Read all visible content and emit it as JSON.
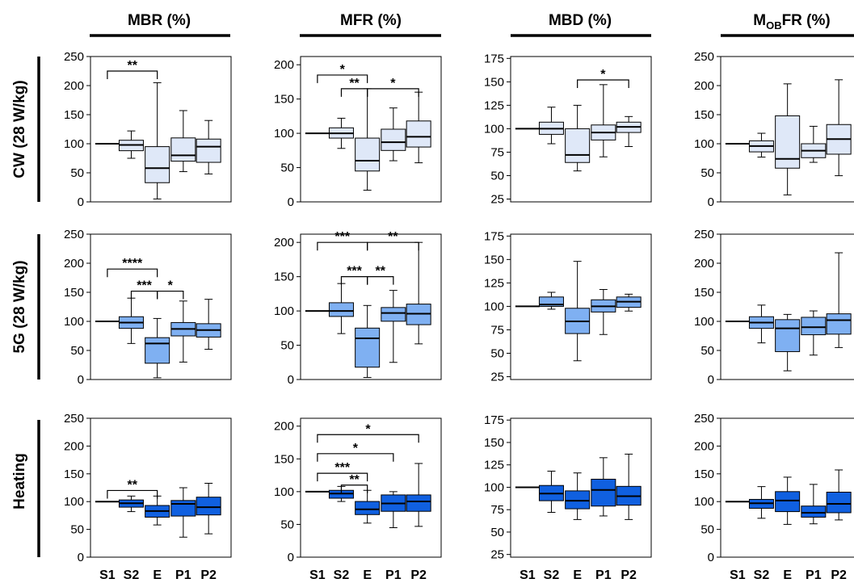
{
  "figure": {
    "colors": {
      "CW": "#dfe8f8",
      "5G": "#7fb0f2",
      "Heating": "#1060e0",
      "ink": "#000000"
    },
    "columns": [
      {
        "id": "MBR",
        "title": "MBR (%)"
      },
      {
        "id": "MFR",
        "title": "MFR (%)"
      },
      {
        "id": "MBD",
        "title": "MBD (%)"
      },
      {
        "id": "MOBFR",
        "title_main": "M",
        "title_sub": "OB",
        "title_rest": "FR (%)"
      }
    ],
    "rows": [
      {
        "id": "CW",
        "title": "CW (28 W/kg)"
      },
      {
        "id": "5G",
        "title": "5G (28 W/kg)"
      },
      {
        "id": "Heating",
        "title": "Heating"
      }
    ]
  },
  "chart_data": [
    {
      "type": "box",
      "column": "MBR",
      "row": "CW",
      "categories": [
        "S1",
        "S2",
        "E",
        "P1",
        "P2"
      ],
      "ylim": [
        0,
        250
      ],
      "yticks": [
        "0",
        "50",
        "100",
        "150",
        "200",
        "250"
      ],
      "boxes": [
        {
          "min": 100,
          "q1": 100,
          "median": 100,
          "q3": 100,
          "max": 100
        },
        {
          "min": 75,
          "q1": 88,
          "median": 98,
          "q3": 106,
          "max": 122
        },
        {
          "min": 5,
          "q1": 33,
          "median": 58,
          "q3": 95,
          "max": 205
        },
        {
          "min": 52,
          "q1": 70,
          "median": 80,
          "q3": 110,
          "max": 157
        },
        {
          "min": 48,
          "q1": 68,
          "median": 95,
          "q3": 108,
          "max": 140
        }
      ],
      "significance": [
        {
          "from": "S1",
          "to": "E",
          "label": "**",
          "y": 225
        }
      ]
    },
    {
      "type": "box",
      "column": "MFR",
      "row": "CW",
      "categories": [
        "S1",
        "S2",
        "E",
        "P1",
        "P2"
      ],
      "ylim": [
        0,
        212
      ],
      "yticks": [
        "0",
        "50",
        "100",
        "150",
        "200"
      ],
      "boxes": [
        {
          "min": 100,
          "q1": 100,
          "median": 100,
          "q3": 100,
          "max": 100
        },
        {
          "min": 78,
          "q1": 93,
          "median": 100,
          "q3": 108,
          "max": 122
        },
        {
          "min": 17,
          "q1": 45,
          "median": 60,
          "q3": 93,
          "max": 165
        },
        {
          "min": 60,
          "q1": 75,
          "median": 87,
          "q3": 106,
          "max": 137
        },
        {
          "min": 57,
          "q1": 80,
          "median": 95,
          "q3": 118,
          "max": 160
        }
      ],
      "significance": [
        {
          "from": "S1",
          "to": "E",
          "label": "*",
          "y": 185
        },
        {
          "from": "S2",
          "to": "E",
          "label": "**",
          "y": 165
        },
        {
          "from": "E",
          "to": "P2",
          "label": "*",
          "y": 165
        }
      ]
    },
    {
      "type": "box",
      "column": "MBD",
      "row": "CW",
      "categories": [
        "S1",
        "S2",
        "E",
        "P1",
        "P2"
      ],
      "ylim": [
        22,
        177
      ],
      "yticks": [
        "25",
        "50",
        "75",
        "100",
        "125",
        "150",
        "175"
      ],
      "boxes": [
        {
          "min": 100,
          "q1": 100,
          "median": 100,
          "q3": 100,
          "max": 100
        },
        {
          "min": 84,
          "q1": 94,
          "median": 100,
          "q3": 107,
          "max": 123
        },
        {
          "min": 55,
          "q1": 64,
          "median": 72,
          "q3": 100,
          "max": 125
        },
        {
          "min": 70,
          "q1": 88,
          "median": 96,
          "q3": 104,
          "max": 147
        },
        {
          "min": 81,
          "q1": 96,
          "median": 102,
          "q3": 107,
          "max": 113
        }
      ],
      "significance": [
        {
          "from": "E",
          "to": "P2",
          "label": "*",
          "y": 152
        }
      ]
    },
    {
      "type": "box",
      "column": "MOBFR",
      "row": "CW",
      "categories": [
        "S1",
        "S2",
        "E",
        "P1",
        "P2"
      ],
      "ylim": [
        0,
        250
      ],
      "yticks": [
        "0",
        "50",
        "100",
        "150",
        "200",
        "250"
      ],
      "boxes": [
        {
          "min": 100,
          "q1": 100,
          "median": 100,
          "q3": 100,
          "max": 100
        },
        {
          "min": 77,
          "q1": 86,
          "median": 96,
          "q3": 105,
          "max": 118
        },
        {
          "min": 12,
          "q1": 58,
          "median": 74,
          "q3": 148,
          "max": 203
        },
        {
          "min": 68,
          "q1": 76,
          "median": 88,
          "q3": 100,
          "max": 130
        },
        {
          "min": 45,
          "q1": 82,
          "median": 108,
          "q3": 133,
          "max": 210
        }
      ],
      "significance": []
    },
    {
      "type": "box",
      "column": "MBR",
      "row": "5G",
      "categories": [
        "S1",
        "S2",
        "E",
        "P1",
        "P2"
      ],
      "ylim": [
        0,
        250
      ],
      "yticks": [
        "0",
        "50",
        "100",
        "150",
        "200",
        "250"
      ],
      "boxes": [
        {
          "min": 100,
          "q1": 100,
          "median": 100,
          "q3": 100,
          "max": 100
        },
        {
          "min": 62,
          "q1": 88,
          "median": 98,
          "q3": 108,
          "max": 140
        },
        {
          "min": 3,
          "q1": 28,
          "median": 62,
          "q3": 72,
          "max": 105
        },
        {
          "min": 30,
          "q1": 75,
          "median": 87,
          "q3": 98,
          "max": 135
        },
        {
          "min": 52,
          "q1": 73,
          "median": 85,
          "q3": 96,
          "max": 138
        }
      ],
      "significance": [
        {
          "from": "S1",
          "to": "E",
          "label": "****",
          "y": 190
        },
        {
          "from": "S2",
          "to": "E",
          "label": "***",
          "y": 152
        },
        {
          "from": "E",
          "to": "P1",
          "label": "*",
          "y": 152
        }
      ]
    },
    {
      "type": "box",
      "column": "MFR",
      "row": "5G",
      "categories": [
        "S1",
        "S2",
        "E",
        "P1",
        "P2"
      ],
      "ylim": [
        0,
        212
      ],
      "yticks": [
        "0",
        "50",
        "100",
        "150",
        "200"
      ],
      "boxes": [
        {
          "min": 100,
          "q1": 100,
          "median": 100,
          "q3": 100,
          "max": 100
        },
        {
          "min": 67,
          "q1": 92,
          "median": 100,
          "q3": 112,
          "max": 140
        },
        {
          "min": 3,
          "q1": 18,
          "median": 60,
          "q3": 75,
          "max": 108
        },
        {
          "min": 25,
          "q1": 85,
          "median": 97,
          "q3": 105,
          "max": 130
        },
        {
          "min": 52,
          "q1": 80,
          "median": 96,
          "q3": 110,
          "max": 200
        }
      ],
      "significance": [
        {
          "from": "S1",
          "to": "E",
          "label": "***",
          "y": 200
        },
        {
          "from": "E",
          "to": "P2",
          "label": "**",
          "y": 200
        },
        {
          "from": "S2",
          "to": "E",
          "label": "***",
          "y": 150
        },
        {
          "from": "E",
          "to": "P1",
          "label": "**",
          "y": 150
        }
      ]
    },
    {
      "type": "box",
      "column": "MBD",
      "row": "5G",
      "categories": [
        "S1",
        "S2",
        "E",
        "P1",
        "P2"
      ],
      "ylim": [
        22,
        177
      ],
      "yticks": [
        "25",
        "50",
        "75",
        "100",
        "125",
        "150",
        "175"
      ],
      "boxes": [
        {
          "min": 100,
          "q1": 100,
          "median": 100,
          "q3": 100,
          "max": 100
        },
        {
          "min": 97,
          "q1": 100,
          "median": 102,
          "q3": 110,
          "max": 115
        },
        {
          "min": 42,
          "q1": 71,
          "median": 84,
          "q3": 98,
          "max": 148
        },
        {
          "min": 70,
          "q1": 94,
          "median": 100,
          "q3": 107,
          "max": 118
        },
        {
          "min": 95,
          "q1": 99,
          "median": 105,
          "q3": 110,
          "max": 113
        }
      ],
      "significance": []
    },
    {
      "type": "box",
      "column": "MOBFR",
      "row": "5G",
      "categories": [
        "S1",
        "S2",
        "E",
        "P1",
        "P2"
      ],
      "ylim": [
        0,
        250
      ],
      "yticks": [
        "0",
        "50",
        "100",
        "150",
        "200",
        "250"
      ],
      "boxes": [
        {
          "min": 100,
          "q1": 100,
          "median": 100,
          "q3": 100,
          "max": 100
        },
        {
          "min": 63,
          "q1": 88,
          "median": 98,
          "q3": 108,
          "max": 128
        },
        {
          "min": 15,
          "q1": 48,
          "median": 88,
          "q3": 103,
          "max": 112
        },
        {
          "min": 42,
          "q1": 77,
          "median": 90,
          "q3": 107,
          "max": 118
        },
        {
          "min": 55,
          "q1": 78,
          "median": 102,
          "q3": 113,
          "max": 218
        }
      ],
      "significance": []
    },
    {
      "type": "box",
      "column": "MBR",
      "row": "Heating",
      "categories": [
        "S1",
        "S2",
        "E",
        "P1",
        "P2"
      ],
      "ylim": [
        0,
        250
      ],
      "yticks": [
        "0",
        "50",
        "100",
        "150",
        "200",
        "250"
      ],
      "boxes": [
        {
          "min": 100,
          "q1": 100,
          "median": 100,
          "q3": 100,
          "max": 100
        },
        {
          "min": 82,
          "q1": 90,
          "median": 97,
          "q3": 103,
          "max": 110
        },
        {
          "min": 58,
          "q1": 72,
          "median": 83,
          "q3": 93,
          "max": 110
        },
        {
          "min": 36,
          "q1": 74,
          "median": 96,
          "q3": 102,
          "max": 125
        },
        {
          "min": 42,
          "q1": 76,
          "median": 90,
          "q3": 108,
          "max": 133
        }
      ],
      "significance": [
        {
          "from": "S1",
          "to": "E",
          "label": "**",
          "y": 120
        }
      ]
    },
    {
      "type": "box",
      "column": "MFR",
      "row": "Heating",
      "categories": [
        "S1",
        "S2",
        "E",
        "P1",
        "P2"
      ],
      "ylim": [
        0,
        212
      ],
      "yticks": [
        "0",
        "50",
        "100",
        "150",
        "200"
      ],
      "boxes": [
        {
          "min": 100,
          "q1": 100,
          "median": 100,
          "q3": 100,
          "max": 100
        },
        {
          "min": 85,
          "q1": 90,
          "median": 97,
          "q3": 102,
          "max": 108
        },
        {
          "min": 52,
          "q1": 65,
          "median": 73,
          "q3": 85,
          "max": 102
        },
        {
          "min": 45,
          "q1": 70,
          "median": 82,
          "q3": 95,
          "max": 100
        },
        {
          "min": 47,
          "q1": 70,
          "median": 85,
          "q3": 95,
          "max": 143
        }
      ],
      "significance": [
        {
          "from": "S1",
          "to": "P2",
          "label": "*",
          "y": 187
        },
        {
          "from": "S1",
          "to": "P1",
          "label": "*",
          "y": 158
        },
        {
          "from": "S1",
          "to": "E",
          "label": "***",
          "y": 128
        },
        {
          "from": "S2",
          "to": "E",
          "label": "**",
          "y": 110
        }
      ]
    },
    {
      "type": "box",
      "column": "MBD",
      "row": "Heating",
      "categories": [
        "S1",
        "S2",
        "E",
        "P1",
        "P2"
      ],
      "ylim": [
        22,
        177
      ],
      "yticks": [
        "25",
        "50",
        "75",
        "100",
        "125",
        "150",
        "175"
      ],
      "boxes": [
        {
          "min": 100,
          "q1": 100,
          "median": 100,
          "q3": 100,
          "max": 100
        },
        {
          "min": 72,
          "q1": 85,
          "median": 93,
          "q3": 102,
          "max": 118
        },
        {
          "min": 64,
          "q1": 76,
          "median": 85,
          "q3": 96,
          "max": 116
        },
        {
          "min": 68,
          "q1": 79,
          "median": 97,
          "q3": 109,
          "max": 133
        },
        {
          "min": 64,
          "q1": 80,
          "median": 90,
          "q3": 101,
          "max": 137
        }
      ],
      "significance": []
    },
    {
      "type": "box",
      "column": "MOBFR",
      "row": "Heating",
      "categories": [
        "S1",
        "S2",
        "E",
        "P1",
        "P2"
      ],
      "ylim": [
        0,
        250
      ],
      "yticks": [
        "0",
        "50",
        "100",
        "150",
        "200",
        "250"
      ],
      "boxes": [
        {
          "min": 100,
          "q1": 100,
          "median": 100,
          "q3": 100,
          "max": 100
        },
        {
          "min": 70,
          "q1": 88,
          "median": 97,
          "q3": 104,
          "max": 127
        },
        {
          "min": 59,
          "q1": 82,
          "median": 102,
          "q3": 118,
          "max": 144
        },
        {
          "min": 60,
          "q1": 72,
          "median": 80,
          "q3": 92,
          "max": 131
        },
        {
          "min": 67,
          "q1": 80,
          "median": 96,
          "q3": 117,
          "max": 157
        }
      ],
      "significance": []
    }
  ]
}
